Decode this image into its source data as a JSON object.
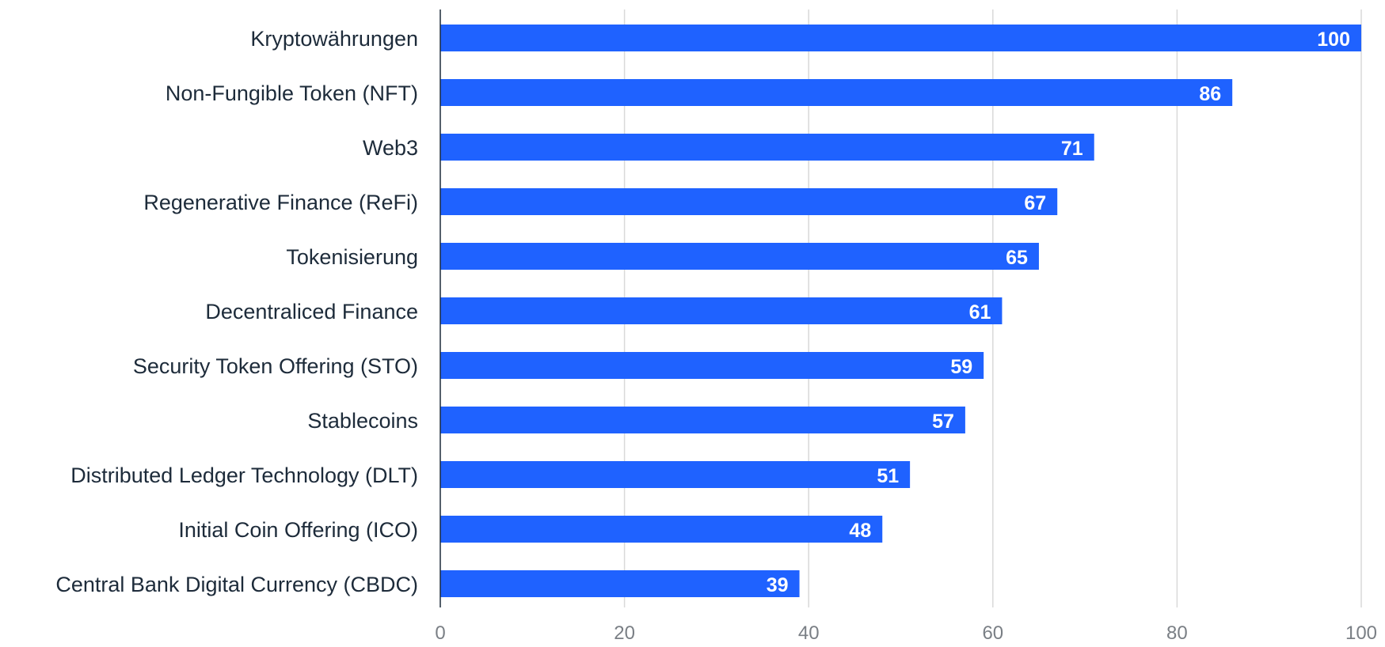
{
  "chart_data": {
    "type": "bar",
    "orientation": "horizontal",
    "categories": [
      "Kryptowährungen",
      "Non-Fungible Token (NFT)",
      "Web3",
      "Regenerative Finance (ReFi)",
      "Tokenisierung",
      "Decentraliced Finance",
      "Security Token Offering (STO)",
      "Stablecoins",
      "Distributed Ledger Technology (DLT)",
      "Initial Coin Offering (ICO)",
      "Central Bank Digital Currency (CBDC)"
    ],
    "values": [
      100,
      86,
      71,
      67,
      65,
      61,
      59,
      57,
      51,
      48,
      39
    ],
    "xlim": [
      0,
      100
    ],
    "x_ticks": [
      0,
      20,
      40,
      60,
      80,
      100
    ],
    "title": "",
    "xlabel": "",
    "ylabel": "",
    "grid": "vertical",
    "legend": "none",
    "data_labels": "inside-end",
    "colors": {
      "bar": "#1f62ff",
      "value_label": "#ffffff",
      "category_label": "#1d2b3a",
      "tick_label": "#7a7f85",
      "gridline": "#d9d9d9"
    }
  }
}
